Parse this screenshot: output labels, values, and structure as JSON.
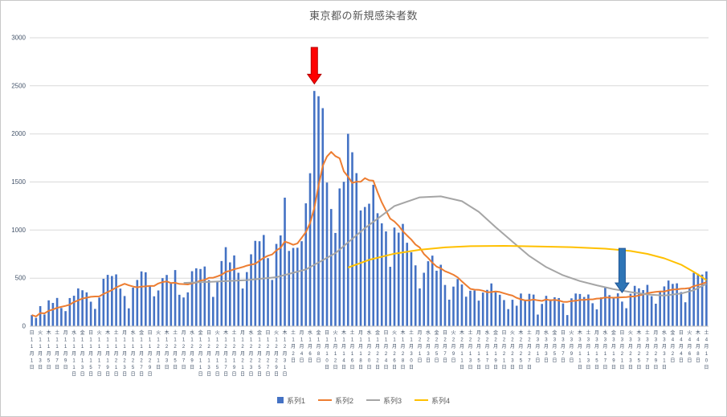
{
  "chart_data": {
    "type": "bar",
    "combo": "bars with 3 overlay lines",
    "title": "東京都の新規感染者数",
    "xlabel": "",
    "ylabel": "",
    "y_axis": {
      "min": 0,
      "max": 3000,
      "ticks": [
        0,
        500,
        1000,
        1500,
        2000,
        2500,
        3000
      ]
    },
    "grid": "horizontal",
    "gridline_color": "#D9D9D9",
    "axis_line_color": "#BFBFBF",
    "axis_text_color": "#44546A",
    "x_tick_labels": [
      "日11月1日",
      "火11月3日",
      "木11月5日",
      "土11月7日",
      "月11月9日",
      "水11月11日",
      "金11月13日",
      "日11月15日",
      "火11月17日",
      "木11月19日",
      "土11月21日",
      "月11月23日",
      "水11月25日",
      "金11月27日",
      "日11月29日",
      "火12月1日",
      "木12月3日",
      "土12月5日",
      "月12月7日",
      "水12月9日",
      "金12月11日",
      "日12月13日",
      "火12月15日",
      "木12月17日",
      "土12月19日",
      "月12月21日",
      "水12月23日",
      "金12月25日",
      "日12月27日",
      "火12月29日",
      "木12月31日",
      "土1月2日",
      "月1月4日",
      "水1月6日",
      "金1月8日",
      "日1月10日",
      "火1月12日",
      "木1月14日",
      "土1月16日",
      "月1月18日",
      "水1月20日",
      "金1月22日",
      "日1月24日",
      "火1月26日",
      "木1月28日",
      "土1月30日",
      "月2月1日",
      "水2月3日",
      "金2月5日",
      "日2月7日",
      "火2月9日",
      "木2月11日",
      "土2月13日",
      "月2月15日",
      "水2月17日",
      "金2月19日",
      "日2月21日",
      "火2月23日",
      "木2月25日",
      "土2月27日",
      "月3月1日",
      "水3月3日",
      "金3月5日",
      "日3月7日",
      "火3月9日",
      "木3月11日",
      "土3月13日",
      "月3月15日",
      "水3月17日",
      "金3月19日",
      "日3月21日",
      "火3月23日",
      "木3月25日",
      "土3月27日",
      "月3月29日",
      "水3月31日",
      "金4月2日",
      "日4月4日",
      "火4月6日",
      "木4月8日",
      "土4月10日"
    ],
    "series": [
      {
        "name": "系列1",
        "type": "bar",
        "color": "#4472C4",
        "values": [
          116,
          87,
          209,
          122,
          269,
          242,
          294,
          189,
          157,
          293,
          317,
          393,
          374,
          352,
          255,
          180,
          298,
          493,
          534,
          522,
          539,
          391,
          314,
          186,
          401,
          481,
          570,
          561,
          418,
          311,
          372,
          500,
          533,
          449,
          584,
          327,
          299,
          352,
          572,
          602,
          595,
          621,
          480,
          305,
          460,
          678,
          822,
          664,
          736,
          556,
          392,
          563,
          748,
          888,
          884,
          949,
          708,
          481,
          856,
          944,
          1337,
          783,
          814,
          816,
          884,
          1278,
          1591,
          2447,
          2392,
          2268,
          1494,
          1219,
          970,
          1433,
          1502,
          2001,
          1809,
          1592,
          1204,
          1240,
          1274,
          1471,
          1175,
          1070,
          986,
          618,
          1026,
          973,
          1064,
          868,
          769,
          633,
          393,
          556,
          676,
          734,
          577,
          639,
          429,
          276,
          412,
          491,
          434,
          307,
          369,
          371,
          266,
          350,
          378,
          445,
          353,
          327,
          272,
          178,
          275,
          213,
          340,
          270,
          337,
          329,
          121,
          232,
          316,
          279,
          301,
          293,
          237,
          116,
          290,
          340,
          335,
          304,
          330,
          239,
          175,
          300,
          409,
          323,
          303,
          342,
          256,
          187,
          337,
          420,
          394,
          376,
          430,
          313,
          234,
          364,
          414,
          475,
          440,
          446,
          355,
          249,
          399,
          555,
          545,
          537,
          570
        ]
      },
      {
        "name": "系列2",
        "type": "line",
        "color": "#ED7D31",
        "derivation": "7-day trailing moving average of 系列1"
      },
      {
        "name": "系列3",
        "type": "line",
        "color": "#A5A5A5",
        "points": [
          [
            36,
            450
          ],
          [
            44,
            465
          ],
          [
            51,
            480
          ],
          [
            58,
            510
          ],
          [
            65,
            590
          ],
          [
            72,
            760
          ],
          [
            79,
            1020
          ],
          [
            86,
            1250
          ],
          [
            92,
            1340
          ],
          [
            97,
            1350
          ],
          [
            102,
            1300
          ],
          [
            106,
            1190
          ],
          [
            110,
            1030
          ],
          [
            114,
            880
          ],
          [
            118,
            730
          ],
          [
            122,
            615
          ],
          [
            126,
            530
          ],
          [
            130,
            470
          ],
          [
            134,
            425
          ],
          [
            138,
            385
          ],
          [
            142,
            355
          ],
          [
            146,
            330
          ],
          [
            150,
            318
          ],
          [
            154,
            340
          ],
          [
            157,
            375
          ],
          [
            160,
            440
          ]
        ]
      },
      {
        "name": "系列4",
        "type": "line",
        "color": "#FFC000",
        "points": [
          [
            75,
            610
          ],
          [
            80,
            690
          ],
          [
            86,
            755
          ],
          [
            92,
            795
          ],
          [
            98,
            820
          ],
          [
            104,
            832
          ],
          [
            112,
            836
          ],
          [
            120,
            830
          ],
          [
            128,
            822
          ],
          [
            136,
            806
          ],
          [
            142,
            782
          ],
          [
            146,
            752
          ],
          [
            150,
            706
          ],
          [
            154,
            640
          ],
          [
            157,
            565
          ],
          [
            159,
            510
          ],
          [
            160,
            478
          ]
        ]
      }
    ],
    "legend": [
      {
        "label": "系列1",
        "color": "#4472C4",
        "marker": "square"
      },
      {
        "label": "系列2",
        "color": "#ED7D31",
        "marker": "line"
      },
      {
        "label": "系列3",
        "color": "#A5A5A5",
        "marker": "line"
      },
      {
        "label": "系列4",
        "color": "#FFC000",
        "marker": "line"
      }
    ],
    "annotations": [
      {
        "name": "red-down-arrow",
        "shape": "down-arrow",
        "fill": "#FF0000",
        "stroke": "#B30000",
        "index": 67,
        "v_top": 2900,
        "v_tip": 2520
      },
      {
        "name": "blue-down-arrow",
        "shape": "down-arrow",
        "fill": "#2E75B6",
        "stroke": "#1F5597",
        "index": 140,
        "v_top": 810,
        "v_tip": 350
      }
    ]
  }
}
